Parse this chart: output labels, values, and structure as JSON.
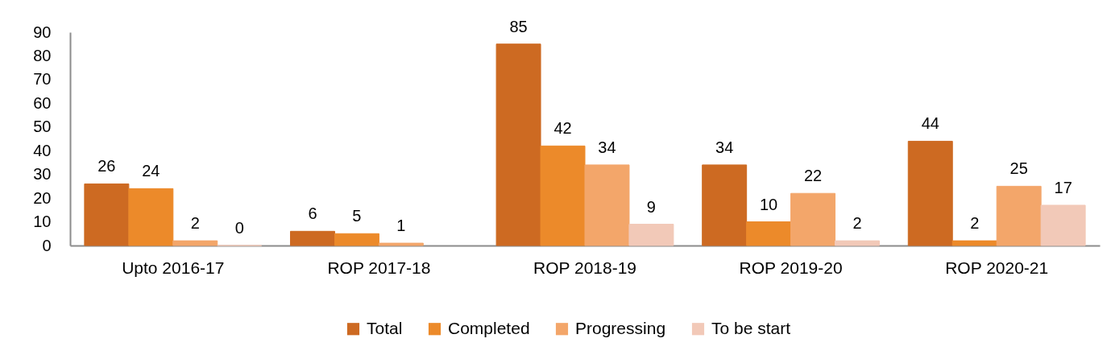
{
  "chart_data": {
    "type": "bar",
    "categories": [
      "Upto 2016-17",
      "ROP 2017-18",
      "ROP 2018-19",
      "ROP 2019-20",
      "ROP 2020-21"
    ],
    "series": [
      {
        "name": "Total",
        "color": "#cd6a22",
        "values": [
          26,
          6,
          85,
          34,
          44
        ]
      },
      {
        "name": "Completed",
        "color": "#ec8a2a",
        "values": [
          24,
          5,
          42,
          10,
          2
        ]
      },
      {
        "name": "Progressing",
        "color": "#f3a66a",
        "values": [
          2,
          1,
          34,
          22,
          25
        ]
      },
      {
        "name": "To be start",
        "color": "#f2c9b8",
        "values": [
          0,
          null,
          9,
          2,
          17
        ]
      }
    ],
    "ylim": [
      0,
      90
    ],
    "yticks": [
      0,
      10,
      20,
      30,
      40,
      50,
      60,
      70,
      80,
      90
    ],
    "data_labels": true,
    "grid": false,
    "legend": "bottom"
  }
}
